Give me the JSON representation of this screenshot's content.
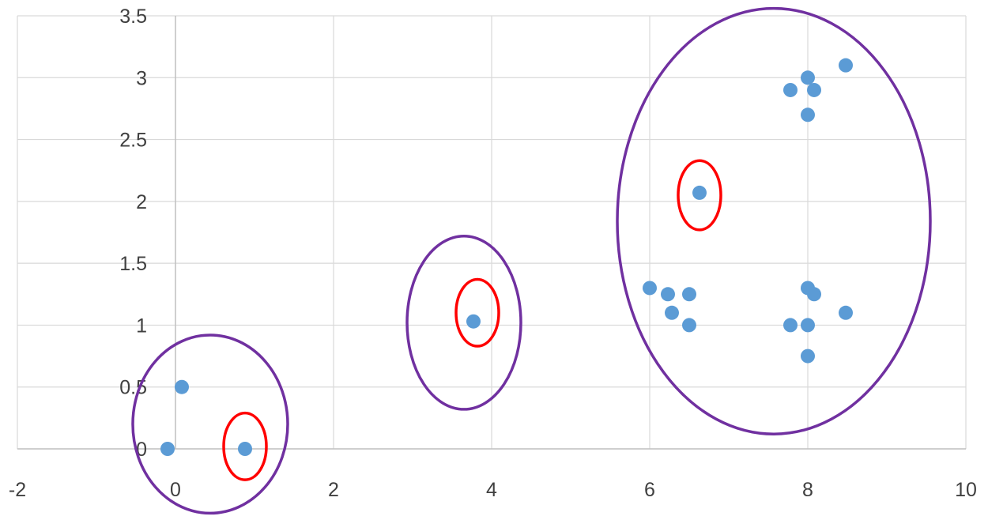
{
  "chart_data": {
    "type": "scatter",
    "title": "",
    "xlabel": "",
    "ylabel": "",
    "xlim": [
      -2,
      10
    ],
    "ylim": [
      0,
      3.5
    ],
    "x_ticks": [
      "-2",
      "0",
      "2",
      "4",
      "6",
      "8",
      "10"
    ],
    "y_ticks": [
      "0",
      "0.5",
      "1",
      "1.5",
      "2",
      "2.5",
      "3",
      "3.5"
    ],
    "grid": true,
    "legend": "none",
    "series": [
      {
        "color": "#5b9bd5",
        "points": [
          {
            "x": -0.1,
            "y": 0.0
          },
          {
            "x": 0.08,
            "y": 0.5
          },
          {
            "x": 0.88,
            "y": 0.0
          },
          {
            "x": 3.77,
            "y": 1.03
          },
          {
            "x": 6.0,
            "y": 1.3
          },
          {
            "x": 6.23,
            "y": 1.25
          },
          {
            "x": 6.28,
            "y": 1.1
          },
          {
            "x": 6.5,
            "y": 1.25
          },
          {
            "x": 6.5,
            "y": 1.0
          },
          {
            "x": 6.63,
            "y": 2.07
          },
          {
            "x": 7.78,
            "y": 2.9
          },
          {
            "x": 7.78,
            "y": 1.0
          },
          {
            "x": 8.0,
            "y": 3.0
          },
          {
            "x": 8.08,
            "y": 2.9
          },
          {
            "x": 8.0,
            "y": 2.7
          },
          {
            "x": 8.0,
            "y": 1.3
          },
          {
            "x": 8.08,
            "y": 1.25
          },
          {
            "x": 8.0,
            "y": 1.0
          },
          {
            "x": 8.0,
            "y": 0.75
          },
          {
            "x": 8.48,
            "y": 3.1
          },
          {
            "x": 8.48,
            "y": 1.1
          }
        ]
      }
    ],
    "cluster_ellipses": [
      {
        "color": "#7030a0",
        "cx": 0.44,
        "cy": 0.2,
        "rx": 0.98,
        "ry": 0.72
      },
      {
        "color": "#7030a0",
        "cx": 3.65,
        "cy": 1.02,
        "rx": 0.72,
        "ry": 0.7
      },
      {
        "color": "#7030a0",
        "cx": 7.57,
        "cy": 1.84,
        "rx": 1.98,
        "ry": 1.72
      }
    ],
    "centroid_ellipses": [
      {
        "color": "#ff0000",
        "cx": 0.88,
        "cy": 0.02,
        "rx": 0.27,
        "ry": 0.27
      },
      {
        "color": "#ff0000",
        "cx": 3.82,
        "cy": 1.1,
        "rx": 0.27,
        "ry": 0.27
      },
      {
        "color": "#ff0000",
        "cx": 6.63,
        "cy": 2.05,
        "rx": 0.27,
        "ry": 0.28
      }
    ]
  }
}
